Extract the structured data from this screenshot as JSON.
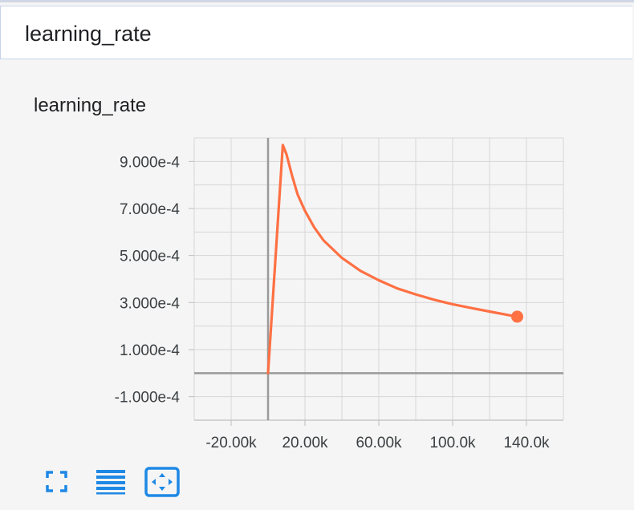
{
  "header": {
    "title": "learning_rate"
  },
  "card": {
    "title": "learning_rate"
  },
  "toolbar": {
    "buttons": [
      {
        "icon": "fullscreen-icon"
      },
      {
        "icon": "toggle-log-scale-icon"
      },
      {
        "icon": "fit-domain-icon"
      }
    ]
  },
  "colors": {
    "series": "#ff7043",
    "accent": "#1e88e5"
  },
  "chart_data": {
    "type": "line",
    "title": "learning_rate",
    "xlabel": "",
    "ylabel": "",
    "xlim": [
      -40000,
      160000
    ],
    "ylim": [
      -0.0002,
      0.001
    ],
    "x_ticks": [
      -20000,
      20000,
      60000,
      100000,
      140000
    ],
    "x_tick_labels": [
      "-20.00k",
      "20.00k",
      "60.00k",
      "100.0k",
      "140.0k"
    ],
    "y_ticks": [
      0.0009,
      0.0007,
      0.0005,
      0.0003,
      0.0001,
      -0.0001
    ],
    "y_tick_labels": [
      "9.000e-4",
      "7.000e-4",
      "5.000e-4",
      "3.000e-4",
      "1.000e-4",
      "-1.000e-4"
    ],
    "grid": true,
    "series": [
      {
        "x": [
          0,
          8000,
          10000,
          13000,
          16000,
          20000,
          25000,
          30000,
          40000,
          50000,
          60000,
          70000,
          80000,
          90000,
          100000,
          110000,
          120000,
          135000
        ],
        "y": [
          0.0,
          0.00097,
          0.00093,
          0.00084,
          0.00076,
          0.00069,
          0.00062,
          0.000565,
          0.00049,
          0.000435,
          0.000395,
          0.00036,
          0.000335,
          0.000312,
          0.000293,
          0.000277,
          0.000262,
          0.00024
        ]
      }
    ]
  }
}
